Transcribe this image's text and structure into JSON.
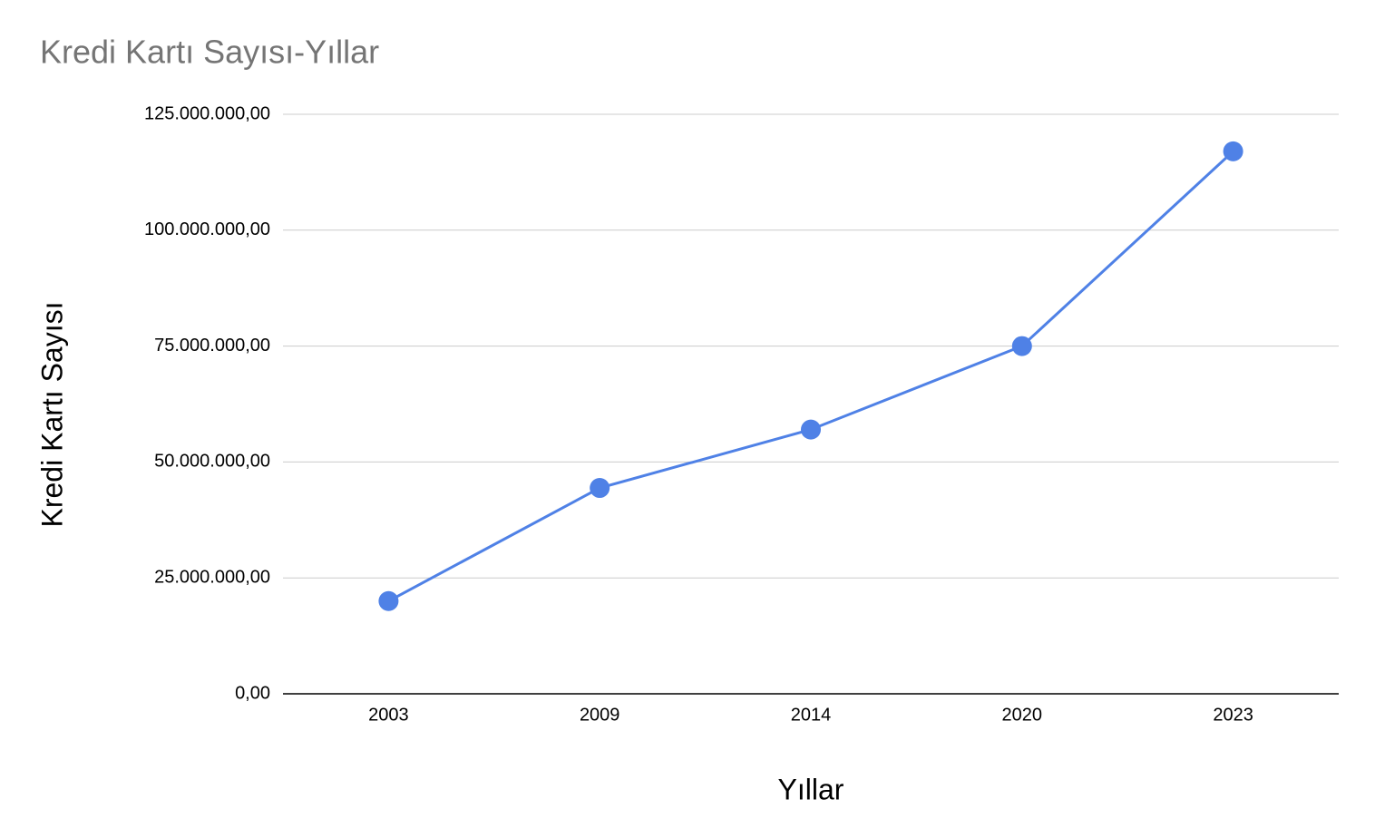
{
  "chart_data": {
    "type": "line",
    "title": "Kredi Kartı Sayısı-Yıllar",
    "x_label": "Yıllar",
    "y_label": "Kredi Kartı Sayısı",
    "categories": [
      "2003",
      "2009",
      "2014",
      "2020",
      "2023"
    ],
    "series": [
      {
        "name": "Kredi Kartı Sayısı",
        "color": "#4f81e6",
        "values": [
          20000000,
          44400000,
          57000000,
          75000000,
          117000000
        ]
      }
    ],
    "ylim": [
      0,
      125000000
    ],
    "yticks": [
      {
        "value": 0,
        "label": "0,00"
      },
      {
        "value": 25000000,
        "label": "25.000.000,00"
      },
      {
        "value": 50000000,
        "label": "50.000.000,00"
      },
      {
        "value": 75000000,
        "label": "75.000.000,00"
      },
      {
        "value": 100000000,
        "label": "100.000.000,00"
      },
      {
        "value": 125000000,
        "label": "125.000.000,00"
      }
    ],
    "grid": true
  }
}
